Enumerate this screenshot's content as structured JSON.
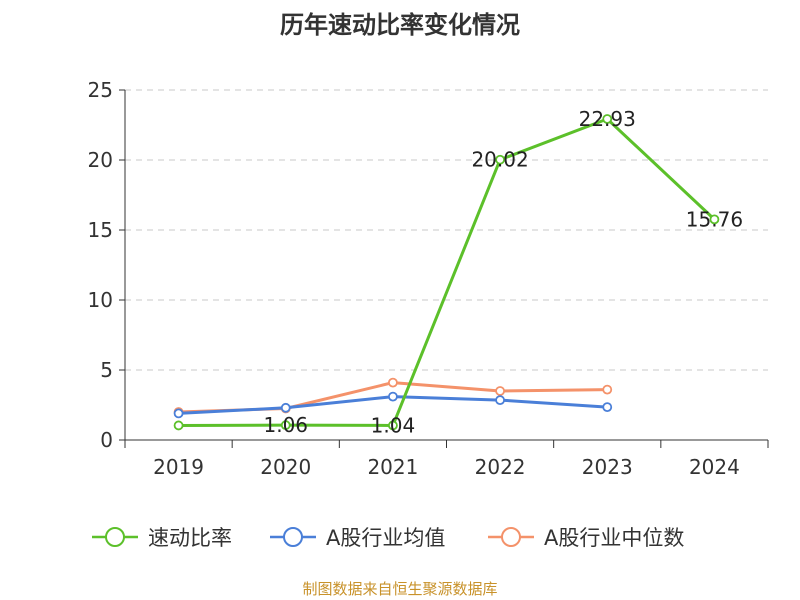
{
  "title": "历年速动比率变化情况",
  "source": "制图数据来自恒生聚源数据库",
  "chart_data": {
    "type": "line",
    "categories": [
      "2019",
      "2020",
      "2021",
      "2022",
      "2023",
      "2024"
    ],
    "ylim": [
      0,
      25
    ],
    "yticks": [
      0,
      5,
      10,
      15,
      20,
      25
    ],
    "grid": true,
    "legend_position": "bottom",
    "series": [
      {
        "name": "速动比率",
        "color": "#5cc02a",
        "values": [
          1.04,
          1.06,
          1.04,
          20.02,
          22.93,
          15.76
        ],
        "labels": [
          "",
          "1.06",
          "1.04",
          "20.02",
          "22.93",
          "15.76"
        ]
      },
      {
        "name": "A股行业均值",
        "color": "#4a7fd8",
        "values": [
          1.9,
          2.3,
          3.1,
          2.85,
          2.35,
          null
        ],
        "labels": [
          "",
          "",
          "",
          "",
          "",
          ""
        ]
      },
      {
        "name": "A股行业中位数",
        "color": "#f4926a",
        "values": [
          2.0,
          2.25,
          4.1,
          3.5,
          3.6,
          null
        ],
        "labels": [
          "",
          "",
          "",
          "",
          "",
          ""
        ]
      }
    ]
  }
}
